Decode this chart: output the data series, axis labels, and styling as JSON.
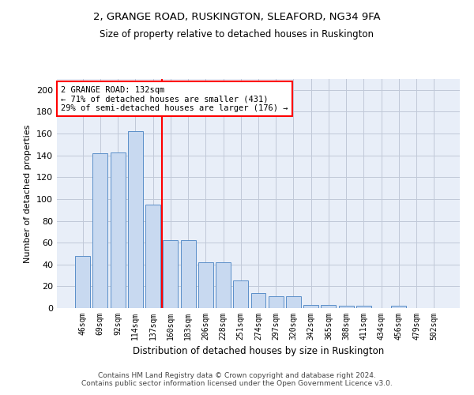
{
  "title1": "2, GRANGE ROAD, RUSKINGTON, SLEAFORD, NG34 9FA",
  "title2": "Size of property relative to detached houses in Ruskington",
  "xlabel": "Distribution of detached houses by size in Ruskington",
  "ylabel": "Number of detached properties",
  "bar_labels": [
    "46sqm",
    "69sqm",
    "92sqm",
    "114sqm",
    "137sqm",
    "160sqm",
    "183sqm",
    "206sqm",
    "228sqm",
    "251sqm",
    "274sqm",
    "297sqm",
    "320sqm",
    "342sqm",
    "365sqm",
    "388sqm",
    "411sqm",
    "434sqm",
    "456sqm",
    "479sqm",
    "502sqm"
  ],
  "bar_values": [
    48,
    142,
    143,
    162,
    95,
    62,
    62,
    42,
    42,
    25,
    14,
    11,
    11,
    3,
    3,
    2,
    2,
    0,
    2,
    0,
    0
  ],
  "bar_color": "#c8d9f0",
  "bar_edgecolor": "#5b8fc9",
  "vline_color": "red",
  "vline_pos": 4.5,
  "annotation_text": "2 GRANGE ROAD: 132sqm\n← 71% of detached houses are smaller (431)\n29% of semi-detached houses are larger (176) →",
  "annotation_box_color": "white",
  "annotation_box_edgecolor": "red",
  "ylim": [
    0,
    210
  ],
  "yticks": [
    0,
    20,
    40,
    60,
    80,
    100,
    120,
    140,
    160,
    180,
    200
  ],
  "grid_color": "#c0c8d8",
  "footnote": "Contains HM Land Registry data © Crown copyright and database right 2024.\nContains public sector information licensed under the Open Government Licence v3.0.",
  "bg_color": "#e8eef8"
}
